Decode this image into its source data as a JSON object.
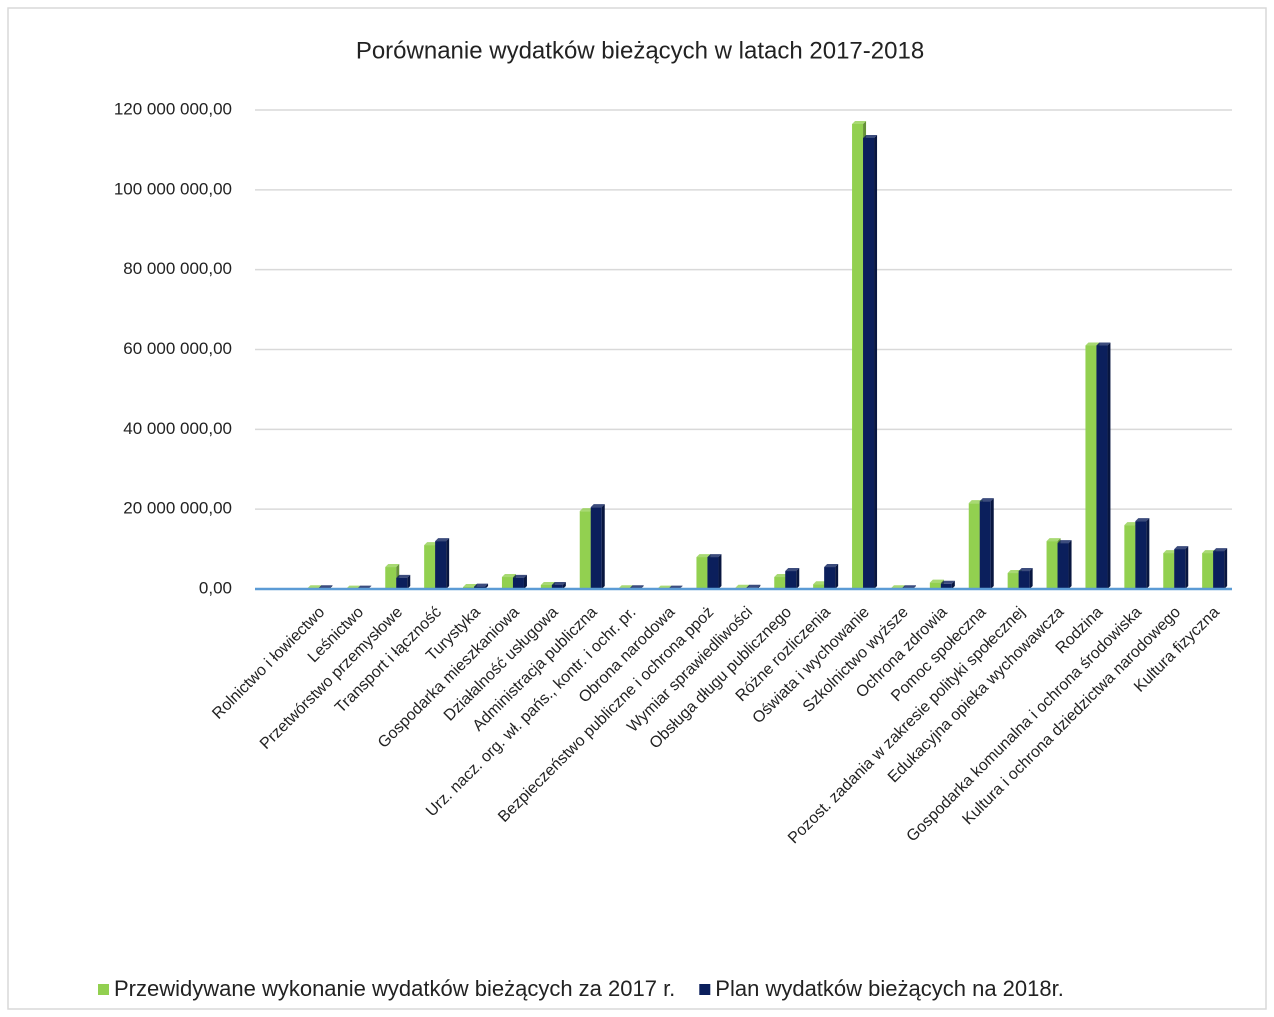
{
  "chart_data": {
    "type": "bar",
    "title": "Porównanie wydatków bieżących w latach 2017-2018",
    "categories": [
      "Rolnictwo i łowiectwo",
      "Leśnictwo",
      "Przetwórstwo przemysłowe",
      "Transport i łączność",
      "Turystyka",
      "Gospodarka mieszkaniowa",
      "Działalność usługowa",
      "Administracja publiczna",
      "Urz. nacz. org. wł. pańs., kontr. i ochr. pr.",
      "Obrona narodowa",
      "Bezpieczeństwo publiczne i ochrona ppoż",
      "Wymiar sprawiedliwości",
      "Obsługa długu publicznego",
      "Różne rozliczenia",
      "Oświata i wychowanie",
      "Szkolnictwo wyższe",
      "Ochrona zdrowia",
      "Pomoc społeczna",
      "Pozost. zadania w zakresie polityki społecznej",
      "Edukacyjna opieka wychowawcza",
      "Rodzina",
      "Gospodarka komunalna i ochrona środowiska",
      "Kultura i ochrona dziedzictwa narodowego",
      "Kultura fizyczna"
    ],
    "series": [
      {
        "name": "Przewidywane wykonanie wydatków bieżących za 2017 r.",
        "color": "#92d050",
        "values": [
          200000,
          100000,
          5500000,
          11000000,
          500000,
          3000000,
          1000000,
          19500000,
          200000,
          100000,
          8000000,
          300000,
          3000000,
          1200000,
          116500000,
          200000,
          1600000,
          21500000,
          4000000,
          12000000,
          61000000,
          16000000,
          9000000,
          9000000
        ]
      },
      {
        "name": "Plan wydatków bieżących na 2018r.",
        "color": "#0b1f5c",
        "values": [
          200000,
          100000,
          2800000,
          12000000,
          600000,
          2800000,
          1000000,
          20500000,
          200000,
          100000,
          8000000,
          300000,
          4500000,
          5500000,
          113000000,
          200000,
          1300000,
          22000000,
          4500000,
          11500000,
          61000000,
          17000000,
          10000000,
          9500000
        ]
      }
    ],
    "ylim": [
      0,
      120000000
    ],
    "yticks": [
      {
        "value": 0,
        "label": "0,00"
      },
      {
        "value": 20000000,
        "label": "20 000 000,00"
      },
      {
        "value": 40000000,
        "label": "40 000 000,00"
      },
      {
        "value": 60000000,
        "label": "60 000 000,00"
      },
      {
        "value": 80000000,
        "label": "80 000 000,00"
      },
      {
        "value": 100000000,
        "label": "100 000 000,00"
      },
      {
        "value": 120000000,
        "label": "120 000 000,00"
      }
    ],
    "grid": true,
    "legend": "bottom"
  }
}
